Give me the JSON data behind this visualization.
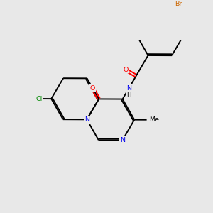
{
  "background_color": "#e8e8e8",
  "bond_color": "#000000",
  "atom_colors": {
    "N": "#0000ee",
    "O": "#ff0000",
    "Cl": "#008800",
    "Br": "#cc6600",
    "C": "#000000",
    "H": "#000000"
  },
  "figsize": [
    3.0,
    3.0
  ],
  "dpi": 100,
  "xlim": [
    0,
    10
  ],
  "ylim": [
    0,
    10
  ]
}
